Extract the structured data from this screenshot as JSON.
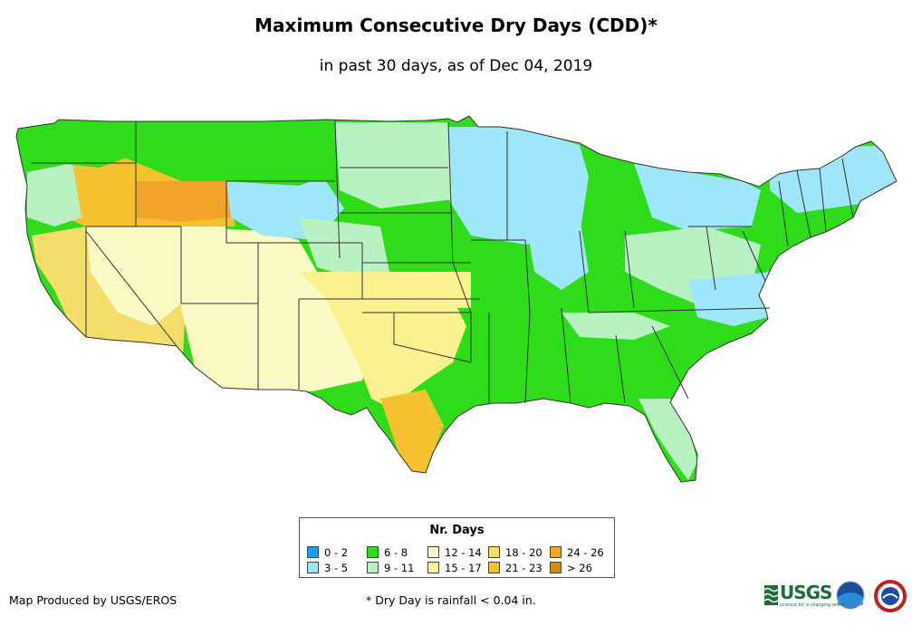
{
  "title": "Maximum Consecutive Dry Days (CDD)*",
  "subtitle": "in past 30 days, as of Dec 04, 2019",
  "legend": {
    "title": "Nr. Days",
    "items": [
      {
        "label": "0 - 2",
        "color": "#1c9ff0"
      },
      {
        "label": "3 - 5",
        "color": "#9ee6f9"
      },
      {
        "label": "6 - 8",
        "color": "#2fdc19"
      },
      {
        "label": "9 - 11",
        "color": "#b9f2c2"
      },
      {
        "label": "12 - 14",
        "color": "#fbf9c4"
      },
      {
        "label": "15 - 17",
        "color": "#faf28f"
      },
      {
        "label": "18 - 20",
        "color": "#f4dd6a"
      },
      {
        "label": "21 - 23",
        "color": "#f6c12f"
      },
      {
        "label": "24 - 26",
        "color": "#f2a52a"
      },
      {
        "label": "> 26",
        "color": "#d88a13"
      }
    ]
  },
  "credit": "Map Produced by USGS/EROS",
  "footnote": "* Dry Day is rainfall < 0.04 in.",
  "logos": {
    "usgs": "USGS",
    "usgs_tagline": "science for a changing world",
    "noaa": "noaa",
    "nws": "NWS"
  }
}
